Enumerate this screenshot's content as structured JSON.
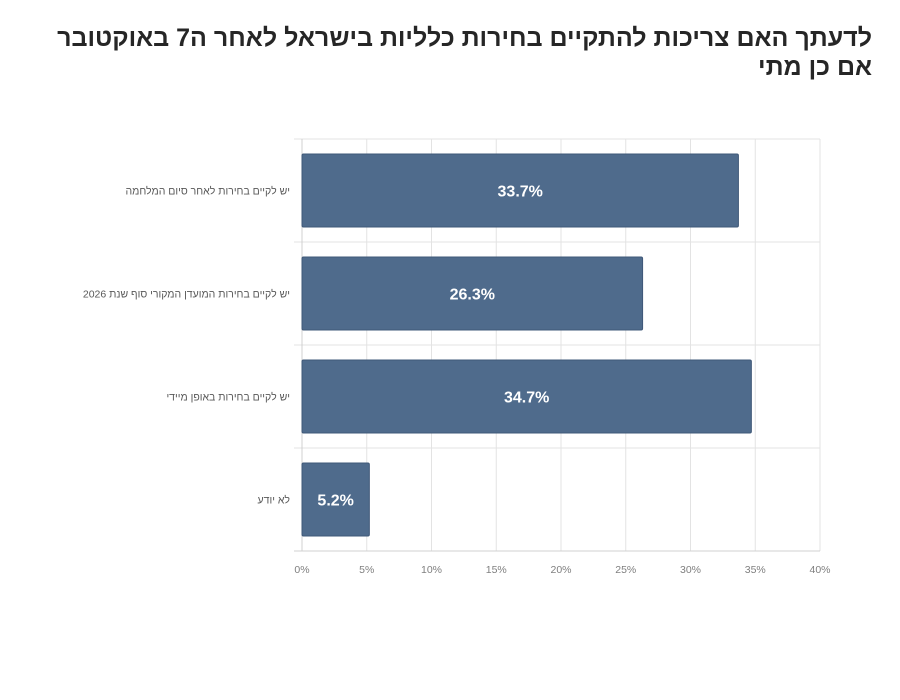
{
  "chart_data": {
    "type": "bar",
    "orientation": "horizontal",
    "title": "לדעתך האם צריכות להתקיים בחירות כלליות בישראל לאחר ה7 באוקטובר אם כן מתי",
    "categories": [
      "יש לקיים בחירות לאחר סיום המלחמה",
      "יש לקיים בחירות המועדן המקורי  סוף שנת 2026",
      "יש לקיים בחירות באופן מיידי",
      "לא יודע"
    ],
    "values": [
      33.7,
      26.3,
      34.7,
      5.2
    ],
    "data_labels": [
      "33.7%",
      "26.3%",
      "34.7%",
      "5.2%"
    ],
    "xlim": [
      0,
      40
    ],
    "x_ticks": [
      "0%",
      "5%",
      "10%",
      "15%",
      "20%",
      "25%",
      "30%",
      "35%",
      "40%"
    ],
    "grid": true,
    "legend": "none",
    "bar_color": "#4f6b8c",
    "label_color": "#ffffff"
  }
}
